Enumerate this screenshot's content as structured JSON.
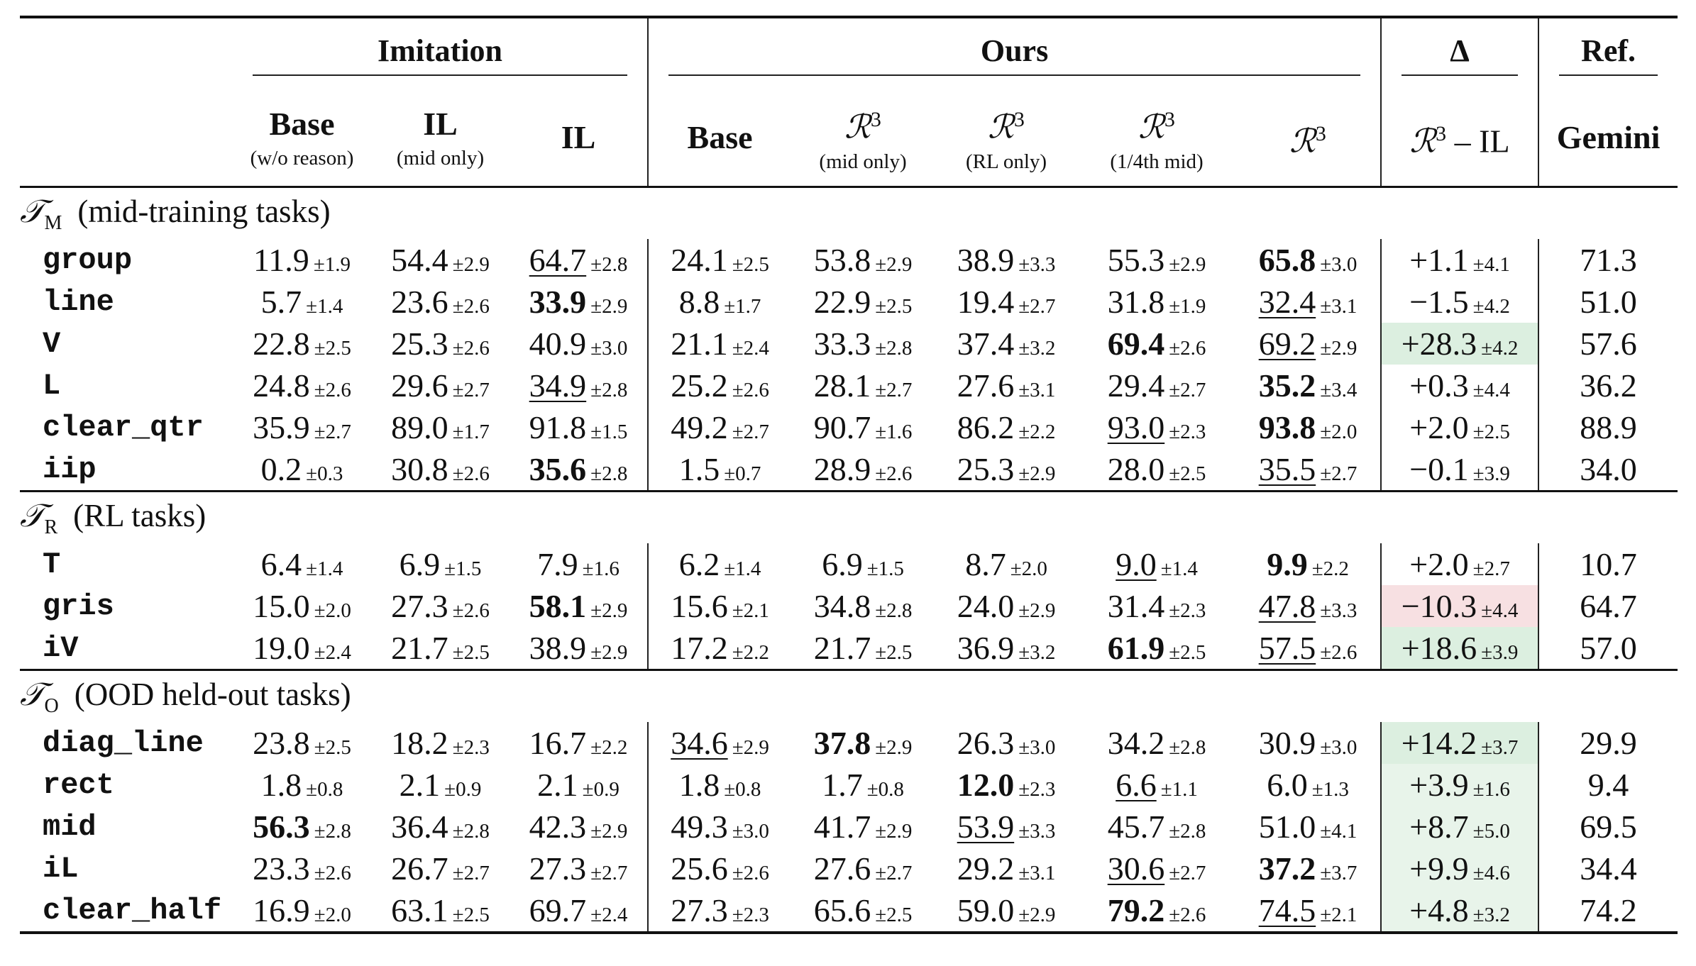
{
  "header": {
    "groups": [
      {
        "label": "Imitation",
        "span": 3
      },
      {
        "label": "Ours",
        "span": 5
      },
      {
        "label": "Δ",
        "span": 1
      },
      {
        "label": "Ref.",
        "span": 1
      }
    ],
    "columns": [
      {
        "label": "Base",
        "sub": "(w/o reason)"
      },
      {
        "label": "IL",
        "sub": "(mid only)"
      },
      {
        "label": "IL"
      },
      {
        "label": "Base"
      },
      {
        "label": "ℛ",
        "sup": "3",
        "sub": "(mid only)"
      },
      {
        "label": "ℛ",
        "sup": "3",
        "sub": "(RL only)"
      },
      {
        "label": "ℛ",
        "sup": "3",
        "sub": "(1/4th mid)"
      },
      {
        "label": "ℛ",
        "sup": "3"
      },
      {
        "label": "ℛ",
        "sup": "3",
        "suffix": " – IL"
      },
      {
        "label": "Gemini"
      }
    ]
  },
  "sections": [
    {
      "symbol": "𝒯",
      "subscript": "M",
      "title": "(mid-training tasks)",
      "rows": [
        {
          "name": "group",
          "cells": [
            [
              "11.9",
              "±1.9"
            ],
            [
              "54.4",
              "±2.9"
            ],
            [
              "64.7",
              "±2.8"
            ],
            [
              "24.1",
              "±2.5"
            ],
            [
              "53.8",
              "±2.9"
            ],
            [
              "38.9",
              "±3.3"
            ],
            [
              "55.3",
              "±2.9"
            ],
            [
              "65.8",
              "±3.0"
            ]
          ],
          "best": 7,
          "second": 2,
          "delta": [
            "+1.1",
            "±4.1"
          ],
          "ref": "71.3"
        },
        {
          "name": "line",
          "cells": [
            [
              "5.7",
              "±1.4"
            ],
            [
              "23.6",
              "±2.6"
            ],
            [
              "33.9",
              "±2.9"
            ],
            [
              "8.8",
              "±1.7"
            ],
            [
              "22.9",
              "±2.5"
            ],
            [
              "19.4",
              "±2.7"
            ],
            [
              "31.8",
              "±1.9"
            ],
            [
              "32.4",
              "±3.1"
            ]
          ],
          "best": 2,
          "second": 7,
          "delta": [
            "−1.5",
            "±4.2"
          ],
          "ref": "51.0"
        },
        {
          "name": "V",
          "cells": [
            [
              "22.8",
              "±2.5"
            ],
            [
              "25.3",
              "±2.6"
            ],
            [
              "40.9",
              "±3.0"
            ],
            [
              "21.1",
              "±2.4"
            ],
            [
              "33.3",
              "±2.8"
            ],
            [
              "37.4",
              "±3.2"
            ],
            [
              "69.4",
              "±2.6"
            ],
            [
              "69.2",
              "±2.9"
            ]
          ],
          "best": 6,
          "second": 7,
          "delta": [
            "+28.3",
            "±4.2"
          ],
          "highlight": "#dcefe0",
          "ref": "57.6"
        },
        {
          "name": "L",
          "cells": [
            [
              "24.8",
              "±2.6"
            ],
            [
              "29.6",
              "±2.7"
            ],
            [
              "34.9",
              "±2.8"
            ],
            [
              "25.2",
              "±2.6"
            ],
            [
              "28.1",
              "±2.7"
            ],
            [
              "27.6",
              "±3.1"
            ],
            [
              "29.4",
              "±2.7"
            ],
            [
              "35.2",
              "±3.4"
            ]
          ],
          "best": 7,
          "second": 2,
          "delta": [
            "+0.3",
            "±4.4"
          ],
          "ref": "36.2"
        },
        {
          "name": "clear_qtr",
          "cells": [
            [
              "35.9",
              "±2.7"
            ],
            [
              "89.0",
              "±1.7"
            ],
            [
              "91.8",
              "±1.5"
            ],
            [
              "49.2",
              "±2.7"
            ],
            [
              "90.7",
              "±1.6"
            ],
            [
              "86.2",
              "±2.2"
            ],
            [
              "93.0",
              "±2.3"
            ],
            [
              "93.8",
              "±2.0"
            ]
          ],
          "best": 7,
          "second": 6,
          "delta": [
            "+2.0",
            "±2.5"
          ],
          "ref": "88.9"
        },
        {
          "name": "iip",
          "cells": [
            [
              "0.2",
              "±0.3"
            ],
            [
              "30.8",
              "±2.6"
            ],
            [
              "35.6",
              "±2.8"
            ],
            [
              "1.5",
              "±0.7"
            ],
            [
              "28.9",
              "±2.6"
            ],
            [
              "25.3",
              "±2.9"
            ],
            [
              "28.0",
              "±2.5"
            ],
            [
              "35.5",
              "±2.7"
            ]
          ],
          "best": 2,
          "second": 7,
          "delta": [
            "−0.1",
            "±3.9"
          ],
          "ref": "34.0"
        }
      ]
    },
    {
      "symbol": "𝒯",
      "subscript": "R",
      "title": "(RL tasks)",
      "rows": [
        {
          "name": "T",
          "cells": [
            [
              "6.4",
              "±1.4"
            ],
            [
              "6.9",
              "±1.5"
            ],
            [
              "7.9",
              "±1.6"
            ],
            [
              "6.2",
              "±1.4"
            ],
            [
              "6.9",
              "±1.5"
            ],
            [
              "8.7",
              "±2.0"
            ],
            [
              "9.0",
              "±1.4"
            ],
            [
              "9.9",
              "±2.2"
            ]
          ],
          "best": 7,
          "second": 6,
          "delta": [
            "+2.0",
            "±2.7"
          ],
          "ref": "10.7"
        },
        {
          "name": "gris",
          "cells": [
            [
              "15.0",
              "±2.0"
            ],
            [
              "27.3",
              "±2.6"
            ],
            [
              "58.1",
              "±2.9"
            ],
            [
              "15.6",
              "±2.1"
            ],
            [
              "34.8",
              "±2.8"
            ],
            [
              "24.0",
              "±2.9"
            ],
            [
              "31.4",
              "±2.3"
            ],
            [
              "47.8",
              "±3.3"
            ]
          ],
          "best": 2,
          "second": 7,
          "delta": [
            "−10.3",
            "±4.4"
          ],
          "highlight": "#f7e0e2",
          "ref": "64.7"
        },
        {
          "name": "iV",
          "cells": [
            [
              "19.0",
              "±2.4"
            ],
            [
              "21.7",
              "±2.5"
            ],
            [
              "38.9",
              "±2.9"
            ],
            [
              "17.2",
              "±2.2"
            ],
            [
              "21.7",
              "±2.5"
            ],
            [
              "36.9",
              "±3.2"
            ],
            [
              "61.9",
              "±2.5"
            ],
            [
              "57.5",
              "±2.6"
            ]
          ],
          "best": 6,
          "second": 7,
          "delta": [
            "+18.6",
            "±3.9"
          ],
          "highlight": "#dcefe0",
          "ref": "57.0"
        }
      ]
    },
    {
      "symbol": "𝒯",
      "subscript": "O",
      "title": "(OOD held-out tasks)",
      "rows": [
        {
          "name": "diag_line",
          "cells": [
            [
              "23.8",
              "±2.5"
            ],
            [
              "18.2",
              "±2.3"
            ],
            [
              "16.7",
              "±2.2"
            ],
            [
              "34.6",
              "±2.9"
            ],
            [
              "37.8",
              "±2.9"
            ],
            [
              "26.3",
              "±3.0"
            ],
            [
              "34.2",
              "±2.8"
            ],
            [
              "30.9",
              "±3.0"
            ]
          ],
          "best": 4,
          "second": 3,
          "delta": [
            "+14.2",
            "±3.7"
          ],
          "highlight": "#dcefe0",
          "ref": "29.9"
        },
        {
          "name": "rect",
          "cells": [
            [
              "1.8",
              "±0.8"
            ],
            [
              "2.1",
              "±0.9"
            ],
            [
              "2.1",
              "±0.9"
            ],
            [
              "1.8",
              "±0.8"
            ],
            [
              "1.7",
              "±0.8"
            ],
            [
              "12.0",
              "±2.3"
            ],
            [
              "6.6",
              "±1.1"
            ],
            [
              "6.0",
              "±1.3"
            ]
          ],
          "best": 5,
          "second": 6,
          "delta": [
            "+3.9",
            "±1.6"
          ],
          "highlight": "#e8f4ea",
          "ref": "9.4"
        },
        {
          "name": "mid",
          "cells": [
            [
              "56.3",
              "±2.8"
            ],
            [
              "36.4",
              "±2.8"
            ],
            [
              "42.3",
              "±2.9"
            ],
            [
              "49.3",
              "±3.0"
            ],
            [
              "41.7",
              "±2.9"
            ],
            [
              "53.9",
              "±3.3"
            ],
            [
              "45.7",
              "±2.8"
            ],
            [
              "51.0",
              "±4.1"
            ]
          ],
          "best": 0,
          "second": 5,
          "delta": [
            "+8.7",
            "±5.0"
          ],
          "highlight": "#e8f4ea",
          "ref": "69.5"
        },
        {
          "name": "iL",
          "cells": [
            [
              "23.3",
              "±2.6"
            ],
            [
              "26.7",
              "±2.7"
            ],
            [
              "27.3",
              "±2.7"
            ],
            [
              "25.6",
              "±2.6"
            ],
            [
              "27.6",
              "±2.7"
            ],
            [
              "29.2",
              "±3.1"
            ],
            [
              "30.6",
              "±2.7"
            ],
            [
              "37.2",
              "±3.7"
            ]
          ],
          "best": 7,
          "second": 6,
          "delta": [
            "+9.9",
            "±4.6"
          ],
          "highlight": "#e8f4ea",
          "ref": "34.4"
        },
        {
          "name": "clear_half",
          "cells": [
            [
              "16.9",
              "±2.0"
            ],
            [
              "63.1",
              "±2.5"
            ],
            [
              "69.7",
              "±2.4"
            ],
            [
              "27.3",
              "±2.3"
            ],
            [
              "65.6",
              "±2.5"
            ],
            [
              "59.0",
              "±2.9"
            ],
            [
              "79.2",
              "±2.6"
            ],
            [
              "74.5",
              "±2.1"
            ]
          ],
          "best": 6,
          "second": 7,
          "delta": [
            "+4.8",
            "±3.2"
          ],
          "highlight": "#e8f4ea",
          "ref": "74.2"
        }
      ]
    }
  ]
}
